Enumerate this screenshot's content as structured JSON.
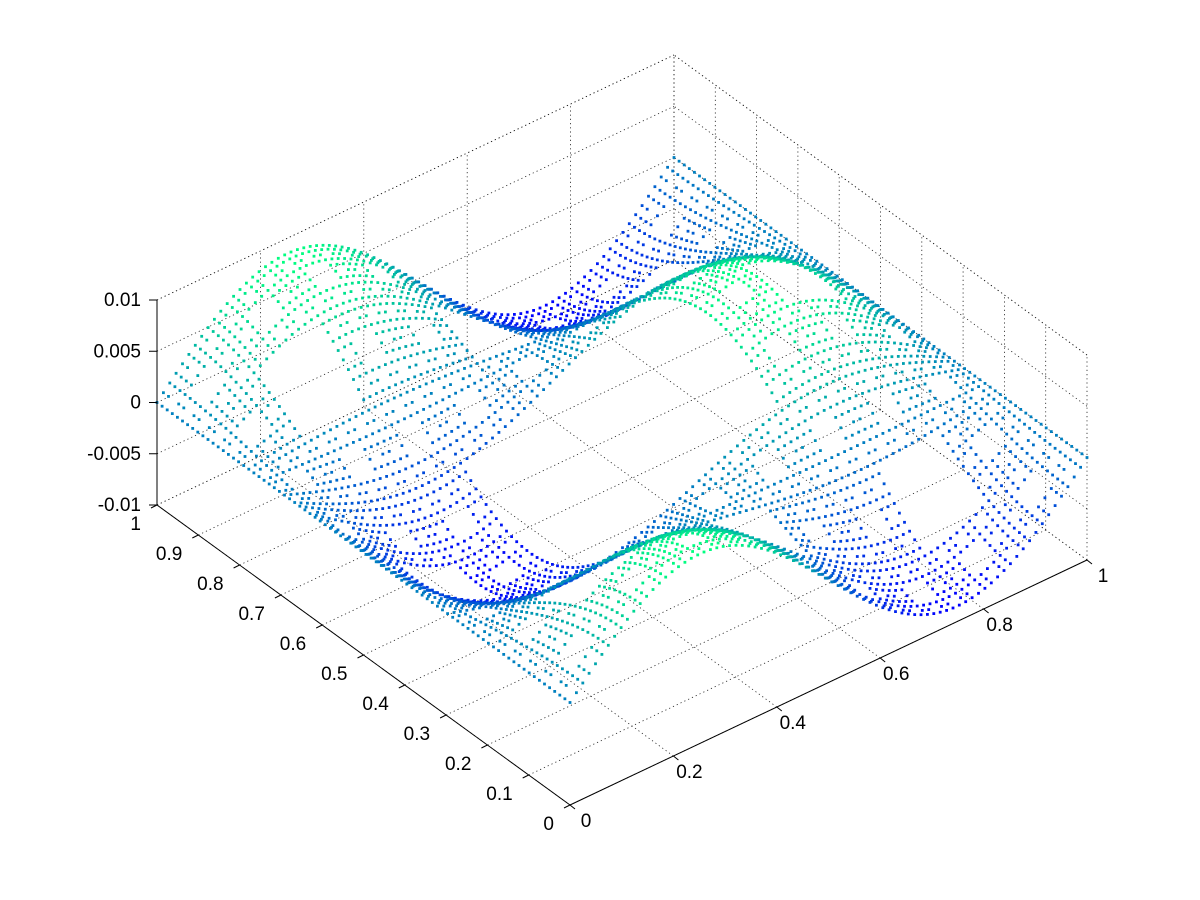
{
  "chart_data": {
    "type": "scatter3d",
    "title": "",
    "xlabel": "",
    "ylabel": "",
    "zlabel": "",
    "xlim": [
      0,
      1
    ],
    "ylim": [
      0,
      1
    ],
    "zlim": [
      -0.01,
      0.01
    ],
    "grid": true,
    "colormap": "winter",
    "x_ticks": [
      {
        "value": 0,
        "label": "0"
      },
      {
        "value": 0.2,
        "label": "0.2"
      },
      {
        "value": 0.4,
        "label": "0.4"
      },
      {
        "value": 0.6,
        "label": "0.6"
      },
      {
        "value": 0.8,
        "label": "0.8"
      },
      {
        "value": 1,
        "label": "1"
      }
    ],
    "y_ticks": [
      {
        "value": 0,
        "label": "0"
      },
      {
        "value": 0.1,
        "label": "0.1"
      },
      {
        "value": 0.2,
        "label": "0.2"
      },
      {
        "value": 0.3,
        "label": "0.3"
      },
      {
        "value": 0.4,
        "label": "0.4"
      },
      {
        "value": 0.5,
        "label": "0.5"
      },
      {
        "value": 0.6,
        "label": "0.6"
      },
      {
        "value": 0.7,
        "label": "0.7"
      },
      {
        "value": 0.8,
        "label": "0.8"
      },
      {
        "value": 0.9,
        "label": "0.9"
      },
      {
        "value": 1,
        "label": "1"
      }
    ],
    "z_ticks": [
      {
        "value": -0.01,
        "label": "-0.01"
      },
      {
        "value": -0.005,
        "label": "-0.005"
      },
      {
        "value": 0,
        "label": "0"
      },
      {
        "value": 0.005,
        "label": "0.005"
      },
      {
        "value": 0.01,
        "label": "0.01"
      }
    ],
    "surface": {
      "description_function": "z = 0.0085 * sin(2*pi*x) * cos(2*pi*y) approx",
      "amplitude": 0.0085,
      "x_frequency": 1,
      "y_frequency": 1,
      "color_low": "#0000ff",
      "color_high": "#00ff80",
      "sierpinski_holes": true
    }
  }
}
